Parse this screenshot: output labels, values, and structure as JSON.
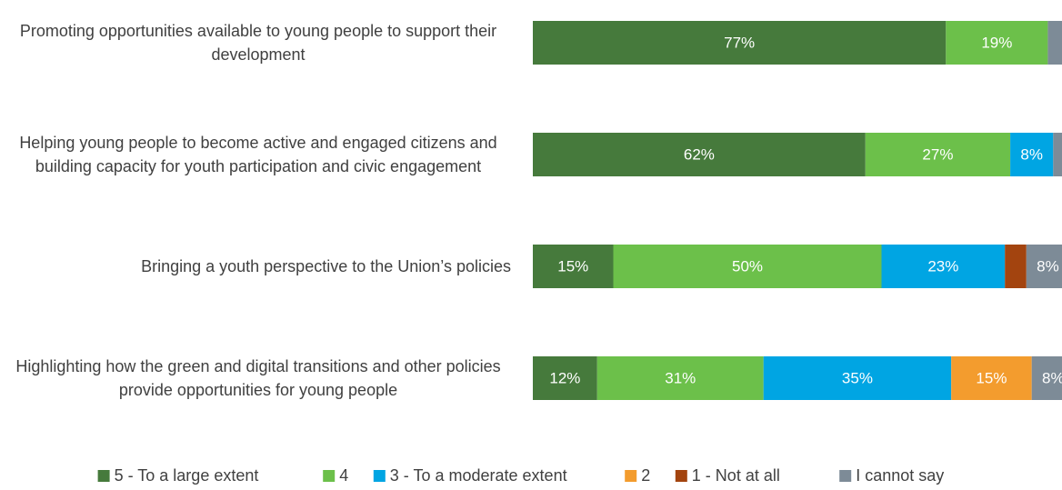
{
  "chart_data": {
    "type": "stacked_barh",
    "categories": [
      "Promoting opportunities available to young people to support their development",
      "Helping young people to become active and engaged citizens and building capacity for youth participation and civic engagement",
      "Bringing a youth perspective to the Union’s policies",
      "Highlighting how the green and digital transitions and other policies provide opportunities for young people"
    ],
    "xlim": [
      0,
      100
    ],
    "legend": "bottom",
    "series": [
      {
        "name": "5 - To a large extent",
        "color": "#467a3c",
        "values": [
          77,
          62,
          15,
          12
        ],
        "value_labels": [
          "77%",
          "62%",
          "15%",
          "12%"
        ]
      },
      {
        "name": "4",
        "color": "#6cc04a",
        "values": [
          19,
          27,
          50,
          31
        ],
        "value_labels": [
          "19%",
          "27%",
          "50%",
          "31%"
        ]
      },
      {
        "name": "3 - To a moderate extent",
        "color": "#00a5e3",
        "values": [
          0,
          8,
          23,
          35
        ],
        "value_labels": [
          null,
          "8%",
          "23%",
          "35%"
        ]
      },
      {
        "name": "2",
        "color": "#f39c2e",
        "values": [
          0,
          0,
          0,
          15
        ],
        "value_labels": [
          null,
          null,
          null,
          "15%"
        ]
      },
      {
        "name": "1 - Not at all",
        "color": "#a3440f",
        "values": [
          0,
          0,
          4,
          0
        ],
        "value_labels": [
          null,
          null,
          null,
          null
        ]
      },
      {
        "name": "I cannot say",
        "color": "#7d8b97",
        "values": [
          4,
          3,
          8,
          8
        ],
        "value_labels": [
          null,
          null,
          "8%",
          "8%"
        ]
      }
    ]
  }
}
